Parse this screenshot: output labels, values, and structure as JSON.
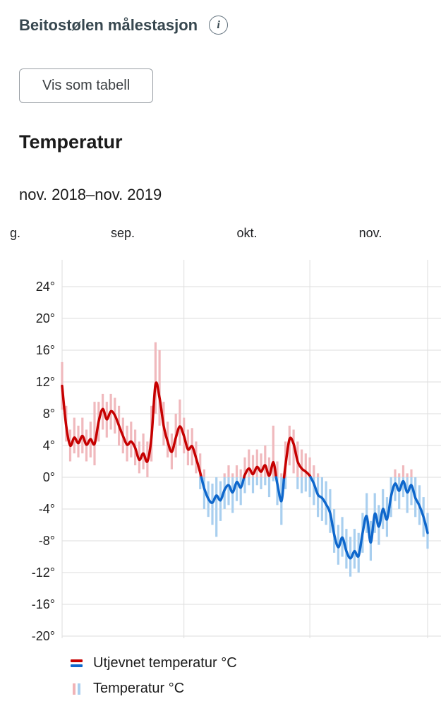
{
  "header": {
    "title": "Beitostølen målestasjon",
    "info_icon_glyph": "i"
  },
  "controls": {
    "table_button_label": "Vis som tabell"
  },
  "chart": {
    "title": "Temperatur",
    "period": "nov. 2018–nov. 2019",
    "legend": [
      {
        "label": "Utjevnet temperatur °C"
      },
      {
        "label": "Temperatur °C"
      }
    ]
  },
  "chart_data": {
    "type": "line",
    "title": "Temperatur",
    "subtitle": "nov. 2018–nov. 2019",
    "ylabel": "°C",
    "yticks": [
      24,
      20,
      16,
      12,
      8,
      4,
      0,
      -4,
      -8,
      -12,
      -16,
      -20
    ],
    "ylim": [
      -22,
      26
    ],
    "grid": true,
    "legend_position": "bottom-left",
    "x_month_labels": [
      "g.",
      "sep.",
      "okt.",
      "nov."
    ],
    "month_day_counts": [
      30,
      31,
      30
    ],
    "colors": {
      "line_above": "#c60000",
      "line_below": "#0e67cc",
      "bar_above": "#f0b9bd",
      "bar_below": "#a9cfef",
      "grid": "#dedede"
    },
    "series": [
      {
        "name": "Utjevnet temperatur °C",
        "type": "line",
        "values": [
          11.5,
          6.5,
          4.0,
          5.0,
          4.3,
          5.2,
          4.1,
          4.8,
          4.2,
          7.0,
          8.6,
          7.3,
          8.3,
          7.8,
          6.5,
          5.2,
          4.1,
          4.5,
          3.7,
          2.2,
          3.0,
          2.0,
          5.0,
          11.7,
          10.0,
          6.5,
          4.5,
          3.2,
          5.0,
          6.4,
          5.2,
          3.5,
          3.9,
          2.4,
          0.6,
          -1.4,
          -2.7,
          -3.2,
          -2.3,
          -2.9,
          -1.6,
          -1.0,
          -1.9,
          -0.6,
          -1.3,
          0.3,
          1.1,
          0.4,
          1.3,
          0.7,
          1.5,
          0.2,
          1.9,
          -0.8,
          -3.0,
          1.5,
          4.8,
          4.2,
          2.0,
          1.1,
          0.7,
          0.2,
          -0.8,
          -2.2,
          -2.6,
          -3.4,
          -4.5,
          -7.2,
          -8.8,
          -7.6,
          -9.3,
          -10.2,
          -9.3,
          -9.9,
          -7.0,
          -4.9,
          -8.2,
          -4.6,
          -6.2,
          -4.0,
          -5.3,
          -2.4,
          -0.8,
          -1.7,
          -0.5,
          -1.9,
          -1.0,
          -2.6,
          -3.6,
          -5.0,
          -7.0
        ]
      },
      {
        "name": "Temperatur °C",
        "type": "range-bar",
        "low": [
          8.5,
          4.5,
          2.0,
          3.0,
          2.5,
          3.0,
          2.0,
          2.5,
          1.5,
          4.5,
          6.0,
          5.0,
          6.0,
          5.5,
          4.0,
          3.0,
          2.0,
          2.5,
          1.5,
          0.5,
          1.0,
          0.0,
          2.0,
          8.0,
          6.5,
          4.0,
          2.5,
          1.0,
          2.5,
          4.0,
          3.0,
          1.5,
          1.5,
          0.5,
          -1.5,
          -4.0,
          -5.0,
          -6.0,
          -7.5,
          -5.5,
          -4.0,
          -3.5,
          -4.5,
          -3.0,
          -3.5,
          -2.0,
          -1.0,
          -2.0,
          -1.0,
          -1.5,
          -1.0,
          -2.5,
          -0.5,
          -3.5,
          -6.0,
          -1.5,
          1.5,
          0.5,
          -1.5,
          -2.0,
          -1.8,
          -2.5,
          -3.5,
          -5.0,
          -5.5,
          -6.0,
          -7.0,
          -9.5,
          -11.0,
          -10.0,
          -11.5,
          -12.5,
          -11.5,
          -12.0,
          -9.5,
          -7.0,
          -10.5,
          -7.0,
          -8.5,
          -6.5,
          -7.5,
          -5.0,
          -3.0,
          -4.0,
          -2.5,
          -4.5,
          -3.5,
          -5.0,
          -6.0,
          -7.5,
          -9.0
        ],
        "high": [
          14.5,
          9.0,
          6.0,
          7.5,
          6.5,
          7.5,
          6.0,
          7.0,
          9.5,
          9.5,
          10.5,
          9.5,
          10.5,
          10.0,
          9.0,
          7.5,
          6.5,
          7.0,
          6.0,
          4.5,
          5.5,
          4.5,
          9.0,
          17.0,
          16.0,
          9.5,
          7.0,
          5.5,
          8.0,
          9.8,
          7.5,
          6.0,
          6.2,
          4.5,
          3.0,
          1.0,
          -0.5,
          -0.8,
          0.0,
          -0.5,
          0.5,
          1.5,
          0.5,
          1.5,
          1.0,
          2.5,
          3.5,
          2.8,
          3.5,
          3.0,
          4.0,
          2.5,
          6.5,
          2.0,
          0.5,
          4.5,
          6.5,
          6.0,
          4.5,
          3.5,
          3.0,
          2.5,
          1.5,
          0.5,
          0.0,
          -0.5,
          -1.5,
          -4.0,
          -6.0,
          -5.0,
          -6.5,
          -7.5,
          -6.5,
          -7.0,
          -4.5,
          -2.0,
          -5.5,
          -2.0,
          -3.5,
          -1.5,
          -2.5,
          0.0,
          1.0,
          0.5,
          1.5,
          0.5,
          1.0,
          0.0,
          -1.0,
          -2.5,
          -4.5
        ]
      }
    ]
  }
}
